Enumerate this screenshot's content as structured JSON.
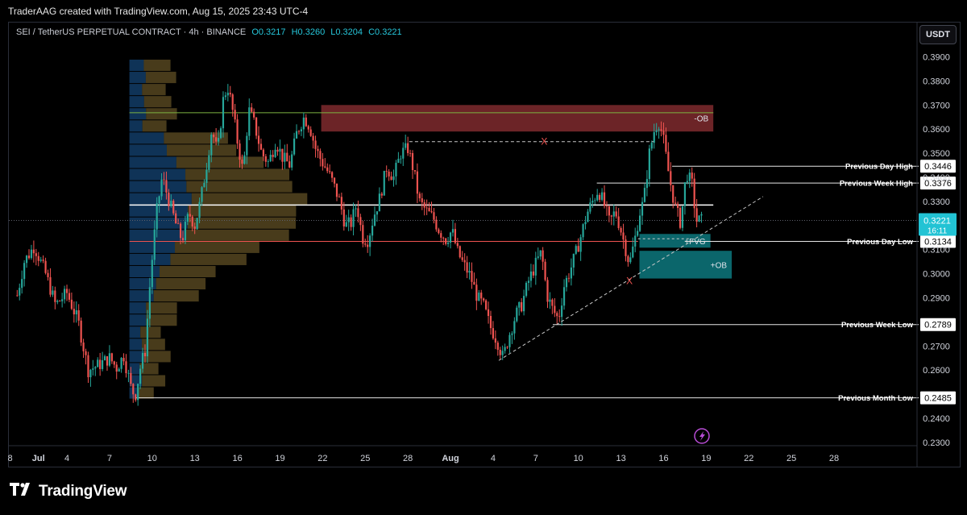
{
  "header": {
    "text": "TraderAAG created with TradingView.com, Aug 15, 2025 23:43 UTC-4"
  },
  "legend": {
    "symbol": "SEI / TetherUS PERPETUAL CONTRACT · 4h · BINANCE",
    "open": "O0.3217",
    "high": "H0.3260",
    "low": "L0.3204",
    "close": "C0.3221"
  },
  "currency_button": "USDT",
  "brand": "TradingView",
  "colors": {
    "up": "#26a69a",
    "down": "#ef5350",
    "bearish_ob": "#7f2a2e",
    "bullish_ob": "#0e7f86",
    "price_badge": "#22c3d4"
  },
  "chart_data": {
    "type": "candlestick",
    "title": "",
    "y_range": [
      0.225,
      0.398
    ],
    "y_ticks": [
      "0.3900",
      "0.3800",
      "0.3700",
      "0.3600",
      "0.3500",
      "0.3400",
      "0.3300",
      "0.3100",
      "0.3000",
      "0.2900",
      "0.2700",
      "0.2600",
      "0.2400",
      "0.2300"
    ],
    "x_range_days": [
      -22,
      36
    ],
    "x_ticks": [
      {
        "label": "8",
        "day": -23
      },
      {
        "label": "Jul",
        "day": -21
      },
      {
        "label": "4",
        "day": -19
      },
      {
        "label": "7",
        "day": -16
      },
      {
        "label": "10",
        "day": -13
      },
      {
        "label": "13",
        "day": -10
      },
      {
        "label": "16",
        "day": -7
      },
      {
        "label": "19",
        "day": -4
      },
      {
        "label": "22",
        "day": -1
      },
      {
        "label": "25",
        "day": 2
      },
      {
        "label": "28",
        "day": 5
      },
      {
        "label": "Aug",
        "day": 8
      },
      {
        "label": "4",
        "day": 11
      },
      {
        "label": "7",
        "day": 14
      },
      {
        "label": "10",
        "day": 17
      },
      {
        "label": "13",
        "day": 20
      },
      {
        "label": "16",
        "day": 23
      },
      {
        "label": "19",
        "day": 26
      },
      {
        "label": "22",
        "day": 29
      },
      {
        "label": "25",
        "day": 32
      },
      {
        "label": "28",
        "day": 35
      }
    ],
    "close_path": [
      [
        -22.5,
        0.291
      ],
      [
        -22,
        0.305
      ],
      [
        -21.3,
        0.3115
      ],
      [
        -20.5,
        0.3
      ],
      [
        -19.8,
        0.287
      ],
      [
        -19,
        0.292
      ],
      [
        -18.2,
        0.28
      ],
      [
        -17.5,
        0.26
      ],
      [
        -16.8,
        0.262
      ],
      [
        -16,
        0.265
      ],
      [
        -15.5,
        0.261
      ],
      [
        -15,
        0.266
      ],
      [
        -14.5,
        0.253
      ],
      [
        -14.2,
        0.249
      ],
      [
        -13.8,
        0.262
      ],
      [
        -13.5,
        0.268
      ],
      [
        -13.1,
        0.3
      ],
      [
        -12.7,
        0.325
      ],
      [
        -12.3,
        0.34
      ],
      [
        -11.8,
        0.33
      ],
      [
        -11.3,
        0.32
      ],
      [
        -10.9,
        0.314
      ],
      [
        -10.4,
        0.325
      ],
      [
        -10,
        0.32
      ],
      [
        -9.6,
        0.33
      ],
      [
        -9.2,
        0.344
      ],
      [
        -8.8,
        0.36
      ],
      [
        -8.4,
        0.35
      ],
      [
        -8,
        0.372
      ],
      [
        -7.7,
        0.378
      ],
      [
        -7.4,
        0.37
      ],
      [
        -7,
        0.355
      ],
      [
        -6.6,
        0.342
      ],
      [
        -6.2,
        0.368
      ],
      [
        -5.8,
        0.362
      ],
      [
        -5.3,
        0.35
      ],
      [
        -4.8,
        0.346
      ],
      [
        -4.3,
        0.355
      ],
      [
        -3.8,
        0.348
      ],
      [
        -3.3,
        0.345
      ],
      [
        -2.8,
        0.359
      ],
      [
        -2.3,
        0.365
      ],
      [
        -1.9,
        0.361
      ],
      [
        -1.5,
        0.352
      ],
      [
        -1.1,
        0.347
      ],
      [
        -0.7,
        0.343
      ],
      [
        -0.3,
        0.338
      ],
      [
        0.2,
        0.33
      ],
      [
        0.6,
        0.32
      ],
      [
        1,
        0.321
      ],
      [
        1.4,
        0.329
      ],
      [
        1.8,
        0.315
      ],
      [
        2.2,
        0.314
      ],
      [
        2.6,
        0.324
      ],
      [
        3,
        0.331
      ],
      [
        3.5,
        0.344
      ],
      [
        4,
        0.34
      ],
      [
        4.5,
        0.35
      ],
      [
        5,
        0.352
      ],
      [
        5.4,
        0.343
      ],
      [
        5.8,
        0.33
      ],
      [
        6.3,
        0.326
      ],
      [
        6.8,
        0.323
      ],
      [
        7.2,
        0.318
      ],
      [
        7.7,
        0.314
      ],
      [
        8.1,
        0.318
      ],
      [
        8.5,
        0.309
      ],
      [
        8.9,
        0.304
      ],
      [
        9.4,
        0.299
      ],
      [
        9.9,
        0.29
      ],
      [
        10.3,
        0.287
      ],
      [
        10.8,
        0.278
      ],
      [
        11.3,
        0.272
      ],
      [
        11.7,
        0.265
      ],
      [
        12.1,
        0.274
      ],
      [
        12.6,
        0.283
      ],
      [
        13,
        0.287
      ],
      [
        13.5,
        0.297
      ],
      [
        14,
        0.304
      ],
      [
        14.4,
        0.309
      ],
      [
        14.8,
        0.291
      ],
      [
        15.2,
        0.285
      ],
      [
        15.6,
        0.281
      ],
      [
        16,
        0.295
      ],
      [
        16.4,
        0.301
      ],
      [
        16.8,
        0.308
      ],
      [
        17.2,
        0.316
      ],
      [
        17.6,
        0.325
      ],
      [
        18,
        0.33
      ],
      [
        18.4,
        0.335
      ],
      [
        18.8,
        0.329
      ],
      [
        19.2,
        0.321
      ],
      [
        19.6,
        0.326
      ],
      [
        20,
        0.318
      ],
      [
        20.3,
        0.311
      ],
      [
        20.6,
        0.304
      ],
      [
        21,
        0.315
      ],
      [
        21.3,
        0.325
      ],
      [
        21.6,
        0.33
      ],
      [
        22,
        0.35
      ],
      [
        22.4,
        0.361
      ],
      [
        22.7,
        0.363
      ],
      [
        23,
        0.355
      ],
      [
        23.4,
        0.34
      ],
      [
        23.8,
        0.328
      ],
      [
        24.2,
        0.321
      ],
      [
        24.6,
        0.342
      ],
      [
        25,
        0.337
      ],
      [
        25.3,
        0.322
      ],
      [
        25.7,
        0.3221
      ]
    ],
    "levels": [
      {
        "label": "Previous Day High",
        "value": 0.3446
      },
      {
        "label": "Previous Week High",
        "value": 0.3376
      },
      {
        "label": "Previous Day Low",
        "value": 0.3134
      },
      {
        "label": "Previous Week Low",
        "value": 0.2789
      },
      {
        "label": "Previous Month Low",
        "value": 0.2485
      }
    ],
    "current_price": {
      "value": "0.3221",
      "countdown": "16:11"
    },
    "zones": [
      {
        "label": "-OB",
        "top": 0.37,
        "bottom": 0.359,
        "day_from": -1.1,
        "day_to": 26.5
      },
      {
        "label": "+FVG",
        "top": 0.3165,
        "bottom": 0.3108,
        "day_from": 21.3,
        "day_to": 26.3
      },
      {
        "label": "+OB",
        "top": 0.3095,
        "bottom": 0.298,
        "day_from": 21.3,
        "day_to": 27.8
      }
    ],
    "markers": [
      "X",
      "X"
    ],
    "volume_profile": {
      "poc": 0.3285,
      "range": [
        0.248,
        0.389
      ]
    }
  }
}
